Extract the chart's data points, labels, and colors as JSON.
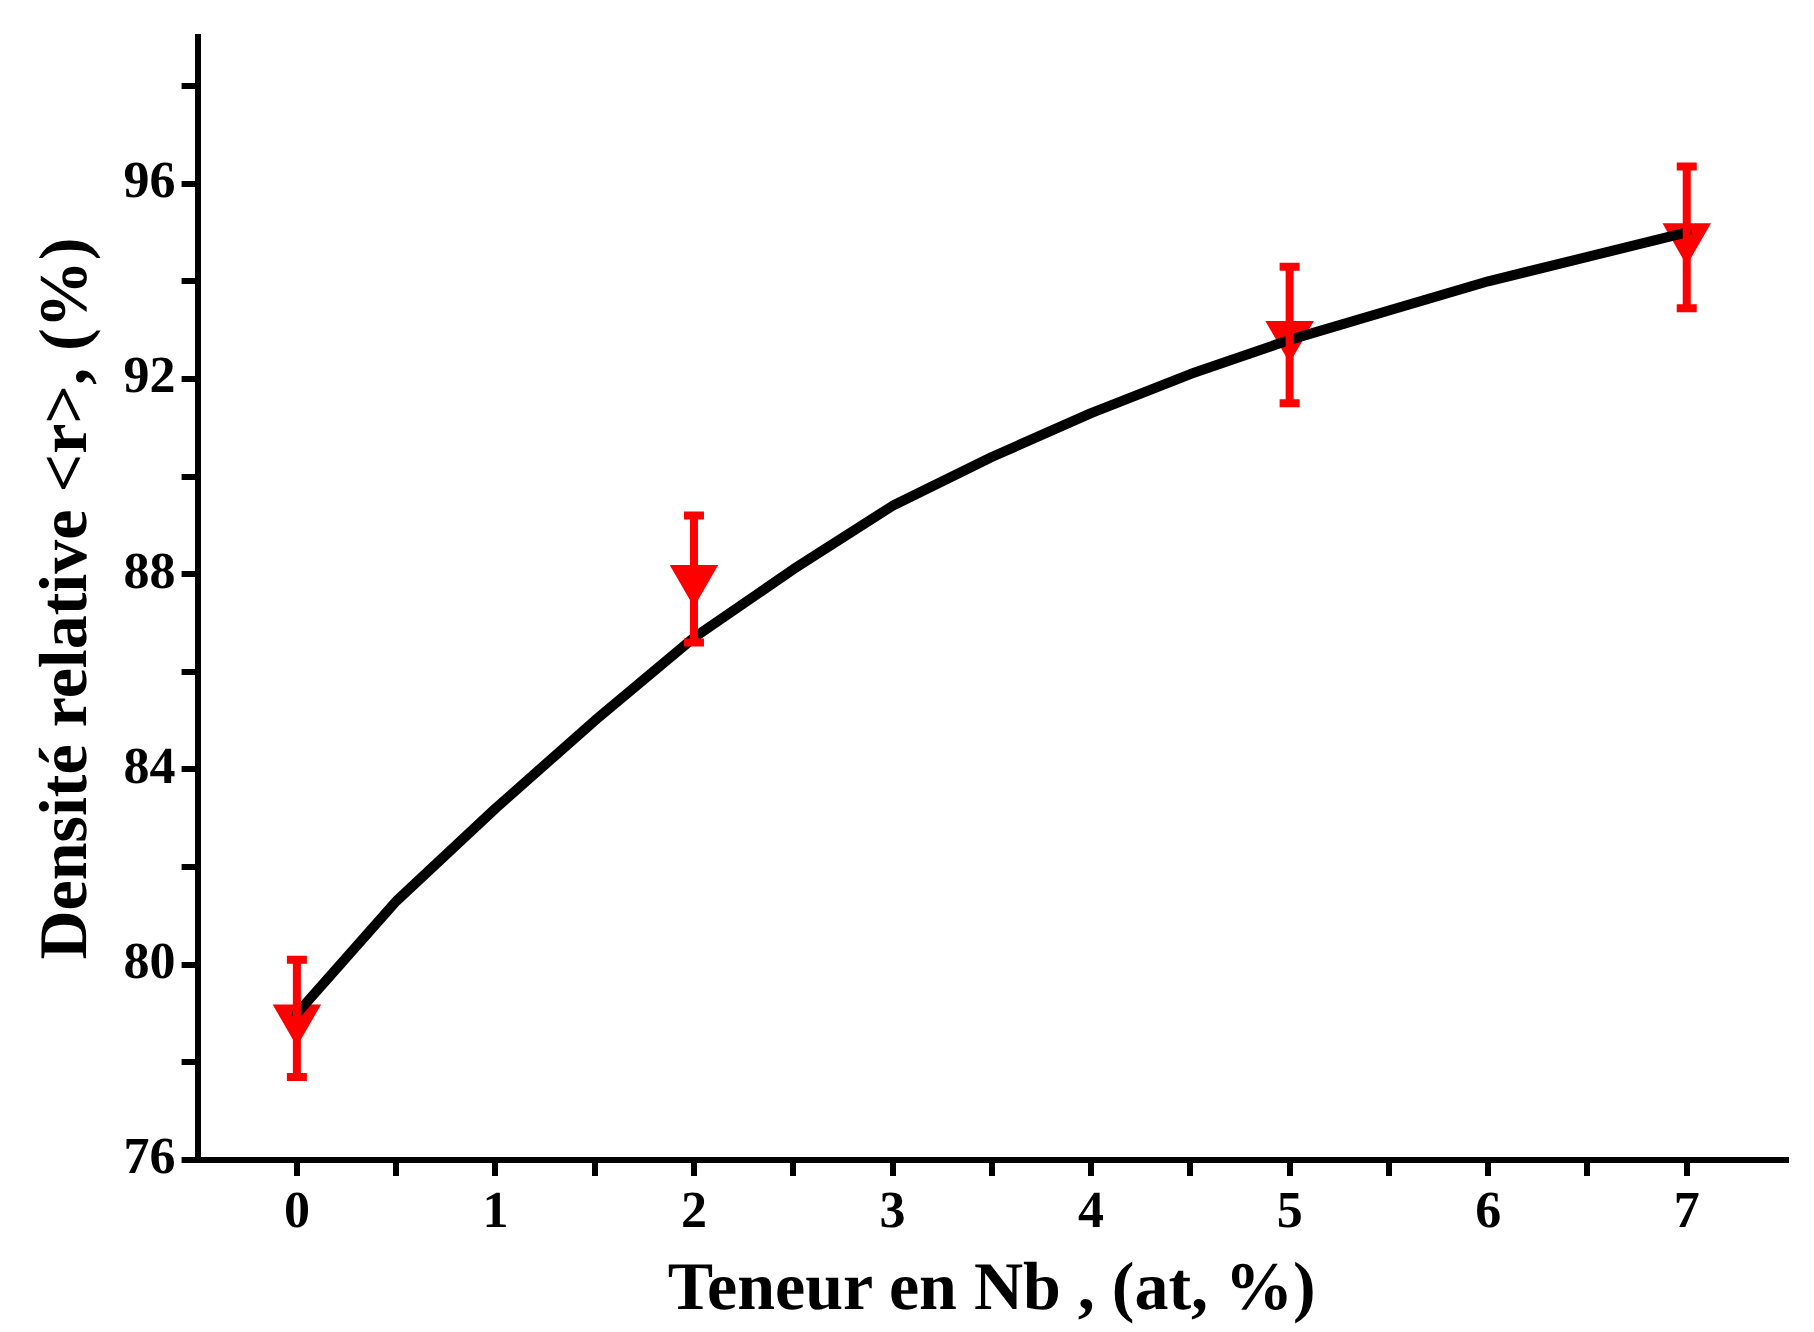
{
  "chart_data": {
    "type": "scatter",
    "xlabel": "Teneur en Nb , (at, %)",
    "ylabel": "Densité relative <r>, (%)",
    "xlim": [
      -0.5,
      7.5
    ],
    "xticks": [
      0,
      {
        "value": 0.5,
        "label": null
      },
      1,
      {
        "value": 1.5,
        "label": null
      },
      2,
      {
        "value": 2.5,
        "label": null
      },
      3,
      {
        "value": 3.5,
        "label": null
      },
      4,
      {
        "value": 4.5,
        "label": null
      },
      5,
      {
        "value": 5.5,
        "label": null
      },
      6,
      {
        "value": 6.5,
        "label": null
      },
      7
    ],
    "ylim": [
      76,
      99
    ],
    "yticks": [
      76,
      {
        "value": 78,
        "label": null
      },
      80,
      {
        "value": 82,
        "label": null
      },
      84,
      {
        "value": 86,
        "label": null
      },
      88,
      {
        "value": 90,
        "label": null
      },
      92,
      {
        "value": 94,
        "label": null
      },
      96,
      {
        "value": 98,
        "label": null
      }
    ],
    "grid": false,
    "legend": false,
    "series": [
      {
        "type": "line",
        "color": "#000000",
        "marker": "none",
        "line_style": "solid",
        "x": [
          0,
          0.5,
          1,
          1.5,
          2,
          2.5,
          3,
          3.5,
          4,
          4.5,
          5,
          5.5,
          6,
          6.5,
          7
        ],
        "values": [
          79.0,
          81.3,
          83.2,
          85.0,
          86.7,
          88.1,
          89.4,
          90.4,
          91.3,
          92.1,
          92.8,
          93.4,
          94.0,
          94.5,
          95.0
        ]
      },
      {
        "type": "scatter",
        "color": "#ff0000",
        "marker": "triangle",
        "x": [
          0,
          2,
          5,
          7
        ],
        "values": [
          78.9,
          87.9,
          92.9,
          94.9
        ],
        "errors": [
          1.2,
          1.3,
          1.4,
          1.45
        ]
      }
    ]
  }
}
